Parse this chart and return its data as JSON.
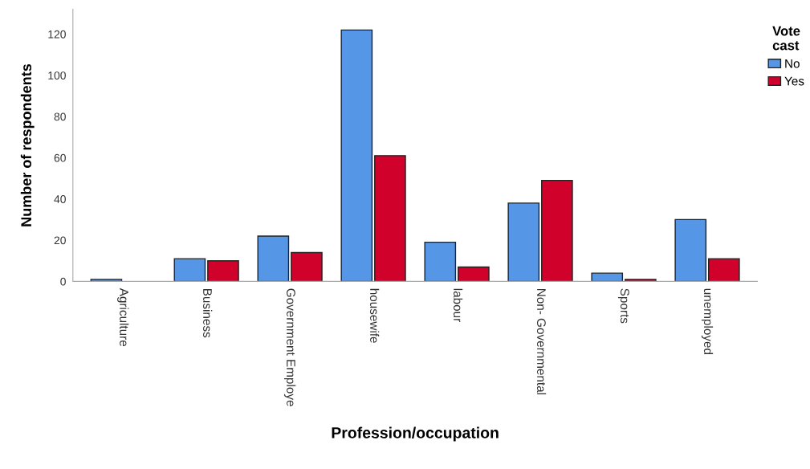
{
  "chart_data": {
    "type": "bar",
    "xlabel": "Profession/occupation",
    "ylabel": "Number of respondents",
    "legend_title": "Vote\ncast",
    "categories": [
      "Agriculture",
      "Business",
      "Government Employe",
      "housewife",
      "labour",
      "Non- Governmental",
      "Sports",
      "unemployed"
    ],
    "series": [
      {
        "name": "No",
        "color": "#5596e6",
        "values": [
          1,
          11,
          22,
          122,
          19,
          38,
          4,
          30
        ]
      },
      {
        "name": "Yes",
        "color": "#d0022b",
        "values": [
          null,
          10,
          14,
          61,
          7,
          49,
          1,
          11
        ]
      }
    ],
    "ylim": [
      0,
      132
    ],
    "yticks": [
      0,
      20,
      40,
      60,
      80,
      100,
      120
    ],
    "grid": false,
    "legend": "top right"
  }
}
